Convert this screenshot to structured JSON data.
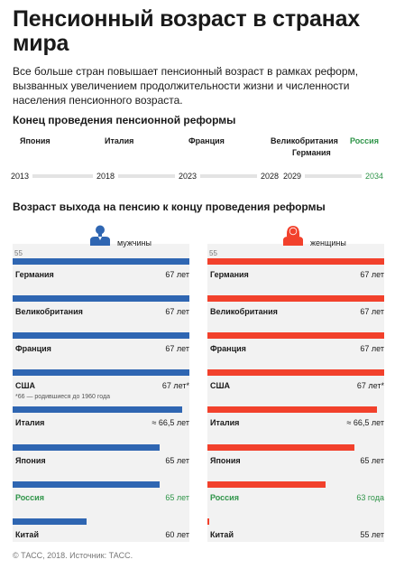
{
  "header": {
    "title": "Пенсионный возраст в странах мира",
    "subtitle": "Все больше стран повышает пенсионный возраст в рамках реформ, вызванных увеличением продолжительности жизни и численности населения пенсионного возраста."
  },
  "timeline": {
    "title": "Конец проведения пенсионной реформы",
    "years": [
      {
        "label": "2013",
        "green": false
      },
      {
        "label": "2018",
        "green": false
      },
      {
        "label": "2023",
        "green": false
      },
      {
        "label": "2028",
        "green": false
      },
      {
        "label": "2029",
        "green": false
      },
      {
        "label": "2034",
        "green": true
      }
    ],
    "countries": [
      {
        "name": "Япония",
        "year": 2013,
        "level": 0,
        "green": false
      },
      {
        "name": "Италия",
        "year": 2018,
        "level": 0,
        "green": false
      },
      {
        "name": "Франция",
        "year": 2023,
        "level": 0,
        "green": false
      },
      {
        "name": "Великобритания",
        "year": 2028,
        "level": 0,
        "green": false
      },
      {
        "name": "Германия",
        "year": 2029,
        "level": 1,
        "green": false
      },
      {
        "name": "Россия",
        "year": 2034,
        "level": 0,
        "green": true
      }
    ]
  },
  "chart_title": "Возраст выхода на пенсию к концу проведения реформы",
  "chart_data": {
    "type": "bar",
    "orientation": "horizontal",
    "x_min": 55,
    "x_min_label": "55",
    "x_max": 67,
    "categories": [
      "Германия",
      "Великобритания",
      "Франция",
      "США",
      "Италия",
      "Япония",
      "Россия",
      "Китай"
    ],
    "series": [
      {
        "name": "мужчины",
        "color": "#2f66b2",
        "values": [
          67,
          67,
          67,
          67,
          66.5,
          65,
          65,
          60
        ],
        "labels": [
          "67 лет",
          "67 лет",
          "67 лет",
          "67 лет*",
          "≈ 66,5 лет",
          "65 лет",
          "65 лет",
          "60 лет"
        ]
      },
      {
        "name": "женщины",
        "color": "#f2412c",
        "values": [
          67,
          67,
          67,
          67,
          66.5,
          65,
          63,
          55
        ],
        "labels": [
          "67 лет",
          "67 лет",
          "67 лет",
          "67 лет*",
          "≈ 66,5 лет",
          "65 лет",
          "63 года",
          "55 лет"
        ]
      }
    ],
    "highlight_category": "Россия",
    "highlight_color": "#2e9448",
    "notes": {
      "США": "*66 — родившиеся до 1960 года"
    }
  },
  "footer": {
    "text": "© ТАСС, 2018. Источник: ТАСС."
  }
}
